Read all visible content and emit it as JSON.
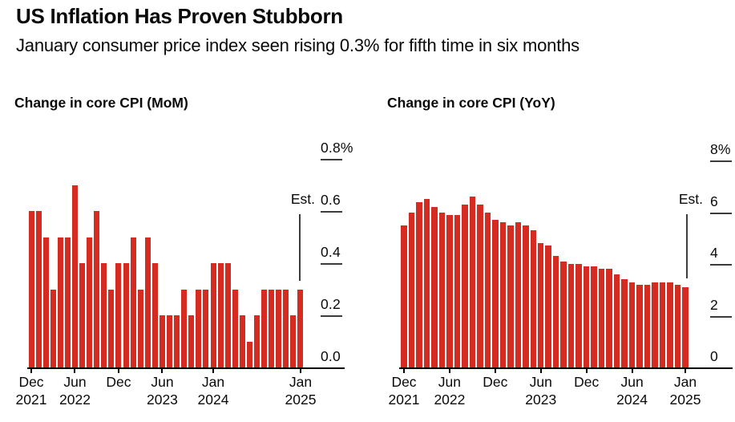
{
  "header": {
    "title": "US Inflation Has Proven Stubborn",
    "subtitle": "January consumer price index seen rising 0.3% for fifth time in six months"
  },
  "colors": {
    "bar_red": "#d52b21",
    "axis_black": "#000000",
    "tick_gray": "#3c3c3c"
  },
  "chart_data": [
    {
      "type": "bar",
      "title": "Change in core CPI (MoM)",
      "ylabel": "",
      "xlabel": "",
      "ylim": [
        0,
        0.8
      ],
      "grid": false,
      "legend_position": "none",
      "x": [
        "Dec 2021",
        "Jan 2022",
        "Feb 2022",
        "Mar 2022",
        "Apr 2022",
        "May 2022",
        "Jun 2022",
        "Jul 2022",
        "Aug 2022",
        "Sep 2022",
        "Oct 2022",
        "Nov 2022",
        "Dec 2022",
        "Jan 2023",
        "Feb 2023",
        "Mar 2023",
        "Apr 2023",
        "May 2023",
        "Jun 2023",
        "Jul 2023",
        "Aug 2023",
        "Sep 2023",
        "Oct 2023",
        "Nov 2023",
        "Dec 2023",
        "Jan 2024",
        "Feb 2024",
        "Mar 2024",
        "Apr 2024",
        "May 2024",
        "Jun 2024",
        "Jul 2024",
        "Aug 2024",
        "Sep 2024",
        "Oct 2024",
        "Nov 2024",
        "Dec 2024",
        "Jan 2025"
      ],
      "values": [
        0.6,
        0.6,
        0.5,
        0.3,
        0.5,
        0.5,
        0.7,
        0.4,
        0.5,
        0.6,
        0.4,
        0.3,
        0.4,
        0.4,
        0.5,
        0.3,
        0.5,
        0.4,
        0.2,
        0.2,
        0.2,
        0.3,
        0.2,
        0.3,
        0.3,
        0.4,
        0.4,
        0.4,
        0.3,
        0.2,
        0.1,
        0.2,
        0.3,
        0.3,
        0.3,
        0.3,
        0.2,
        0.3
      ],
      "yticks": [
        {
          "v": 0.8,
          "label": "0.8%"
        },
        {
          "v": 0.6,
          "label": "0.6"
        },
        {
          "v": 0.4,
          "label": "0.4"
        },
        {
          "v": 0.2,
          "label": "0.2"
        },
        {
          "v": 0.0,
          "label": "0.0"
        }
      ],
      "xticks": [
        {
          "index": 0,
          "line1": "Dec",
          "line2": "2021"
        },
        {
          "index": 6,
          "line1": "Jun",
          "line2": "2022"
        },
        {
          "index": 12,
          "line1": "Dec",
          "line2": ""
        },
        {
          "index": 18,
          "line1": "Jun",
          "line2": "2023"
        },
        {
          "index": 25,
          "line1": "Jan",
          "line2": "2024"
        },
        {
          "index": 37,
          "line1": "Jan",
          "line2": "2025"
        }
      ],
      "est": {
        "label": "Est.",
        "index": 37,
        "value": 0.3
      }
    },
    {
      "type": "bar",
      "title": "Change in core CPI (YoY)",
      "ylabel": "",
      "xlabel": "",
      "ylim": [
        0,
        8
      ],
      "grid": false,
      "legend_position": "none",
      "x": [
        "Dec 2021",
        "Jan 2022",
        "Feb 2022",
        "Mar 2022",
        "Apr 2022",
        "May 2022",
        "Jun 2022",
        "Jul 2022",
        "Aug 2022",
        "Sep 2022",
        "Oct 2022",
        "Nov 2022",
        "Dec 2022",
        "Jan 2023",
        "Feb 2023",
        "Mar 2023",
        "Apr 2023",
        "May 2023",
        "Jun 2023",
        "Jul 2023",
        "Aug 2023",
        "Sep 2023",
        "Oct 2023",
        "Nov 2023",
        "Dec 2023",
        "Jan 2024",
        "Feb 2024",
        "Mar 2024",
        "Apr 2024",
        "May 2024",
        "Jun 2024",
        "Jul 2024",
        "Aug 2024",
        "Sep 2024",
        "Oct 2024",
        "Nov 2024",
        "Dec 2024",
        "Jan 2025"
      ],
      "values": [
        5.5,
        6.0,
        6.4,
        6.5,
        6.2,
        6.0,
        5.9,
        5.9,
        6.3,
        6.6,
        6.3,
        6.0,
        5.7,
        5.6,
        5.5,
        5.6,
        5.5,
        5.3,
        4.8,
        4.7,
        4.3,
        4.1,
        4.0,
        4.0,
        3.9,
        3.9,
        3.8,
        3.8,
        3.6,
        3.4,
        3.3,
        3.2,
        3.2,
        3.3,
        3.3,
        3.3,
        3.2,
        3.1
      ],
      "yticks": [
        {
          "v": 8,
          "label": "8%"
        },
        {
          "v": 6,
          "label": "6"
        },
        {
          "v": 4,
          "label": "4"
        },
        {
          "v": 2,
          "label": "2"
        },
        {
          "v": 0,
          "label": "0"
        }
      ],
      "xticks": [
        {
          "index": 0,
          "line1": "Dec",
          "line2": "2021"
        },
        {
          "index": 6,
          "line1": "Jun",
          "line2": "2022"
        },
        {
          "index": 12,
          "line1": "Dec",
          "line2": ""
        },
        {
          "index": 18,
          "line1": "Jun",
          "line2": "2023"
        },
        {
          "index": 24,
          "line1": "Dec",
          "line2": ""
        },
        {
          "index": 30,
          "line1": "Jun",
          "line2": "2024"
        },
        {
          "index": 37,
          "line1": "Jan",
          "line2": "2025"
        }
      ],
      "est": {
        "label": "Est.",
        "index": 37,
        "value": 3.1
      }
    }
  ]
}
